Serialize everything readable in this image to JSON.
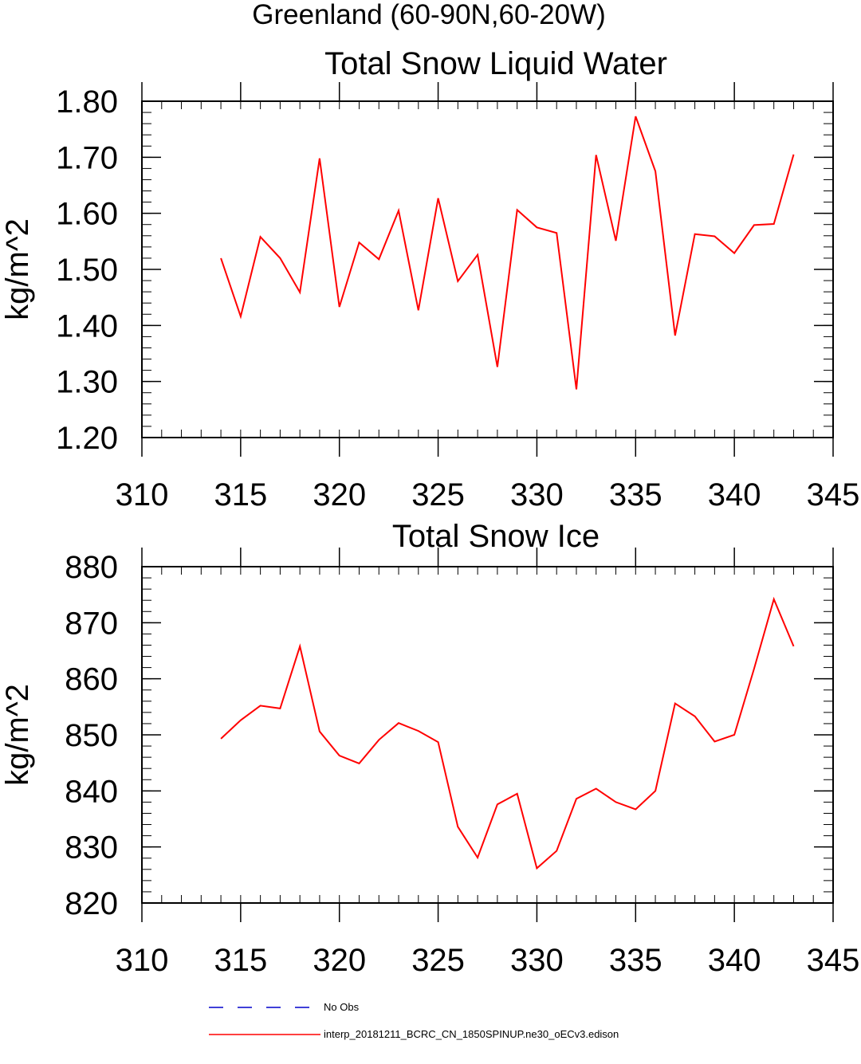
{
  "figure": {
    "title": "Greenland (60-90N,60-20W)"
  },
  "chart_data": [
    {
      "type": "line",
      "title": "Total Snow Liquid Water",
      "xlabel": "",
      "ylabel": "kg/m^2",
      "xlim": [
        310,
        345
      ],
      "ylim": [
        1.2,
        1.8
      ],
      "x_ticks": [
        310,
        315,
        320,
        325,
        330,
        335,
        340,
        345
      ],
      "y_ticks": [
        1.2,
        1.3,
        1.4,
        1.5,
        1.6,
        1.7,
        1.8
      ],
      "y_tick_labels": [
        "1.20",
        "1.30",
        "1.40",
        "1.50",
        "1.60",
        "1.70",
        "1.80"
      ],
      "y_minor_step": 0.02,
      "x_minor_step": 1,
      "series": [
        {
          "name": "interp_20181211_BCRC_CN_1850SPINUP.ne30_oECv3.edison",
          "color": "#ff0000",
          "x": [
            314,
            315,
            316,
            317,
            318,
            319,
            320,
            321,
            322,
            323,
            324,
            325,
            326,
            327,
            328,
            329,
            330,
            331,
            332,
            333,
            334,
            335,
            336,
            337,
            338,
            339,
            340,
            341,
            342,
            343
          ],
          "values": [
            1.52,
            1.416,
            1.558,
            1.52,
            1.459,
            1.698,
            1.433,
            1.548,
            1.518,
            1.605,
            1.427,
            1.627,
            1.479,
            1.526,
            1.326,
            1.606,
            1.575,
            1.565,
            1.286,
            1.704,
            1.551,
            1.773,
            1.675,
            1.382,
            1.563,
            1.559,
            1.529,
            1.579,
            1.581,
            1.705
          ]
        }
      ]
    },
    {
      "type": "line",
      "title": "Total Snow Ice",
      "xlabel": "",
      "ylabel": "kg/m^2",
      "xlim": [
        310,
        345
      ],
      "ylim": [
        820,
        880
      ],
      "x_ticks": [
        310,
        315,
        320,
        325,
        330,
        335,
        340,
        345
      ],
      "y_ticks": [
        820,
        830,
        840,
        850,
        860,
        870,
        880
      ],
      "y_tick_labels": [
        "820",
        "830",
        "840",
        "850",
        "860",
        "870",
        "880"
      ],
      "y_minor_step": 2,
      "x_minor_step": 1,
      "series": [
        {
          "name": "interp_20181211_BCRC_CN_1850SPINUP.ne30_oECv3.edison",
          "color": "#ff0000",
          "x": [
            314,
            315,
            316,
            317,
            318,
            319,
            320,
            321,
            322,
            323,
            324,
            325,
            326,
            327,
            328,
            329,
            330,
            331,
            332,
            333,
            334,
            335,
            336,
            337,
            338,
            339,
            340,
            341,
            342,
            343
          ],
          "values": [
            849.3,
            852.6,
            855.2,
            854.7,
            865.8,
            850.6,
            846.3,
            844.9,
            849.1,
            852.1,
            850.7,
            848.7,
            833.6,
            828.1,
            837.6,
            839.5,
            826.2,
            829.3,
            838.6,
            840.4,
            838.0,
            836.7,
            840.0,
            855.6,
            853.3,
            848.8,
            850.0,
            861.8,
            874.2,
            865.8
          ]
        }
      ]
    }
  ],
  "legend": {
    "items": [
      {
        "label": "No Obs",
        "color": "#0000cc",
        "style": "dashed"
      },
      {
        "label": "interp_20181211_BCRC_CN_1850SPINUP.ne30_oECv3.edison",
        "color": "#ff0000",
        "style": "solid"
      }
    ]
  }
}
